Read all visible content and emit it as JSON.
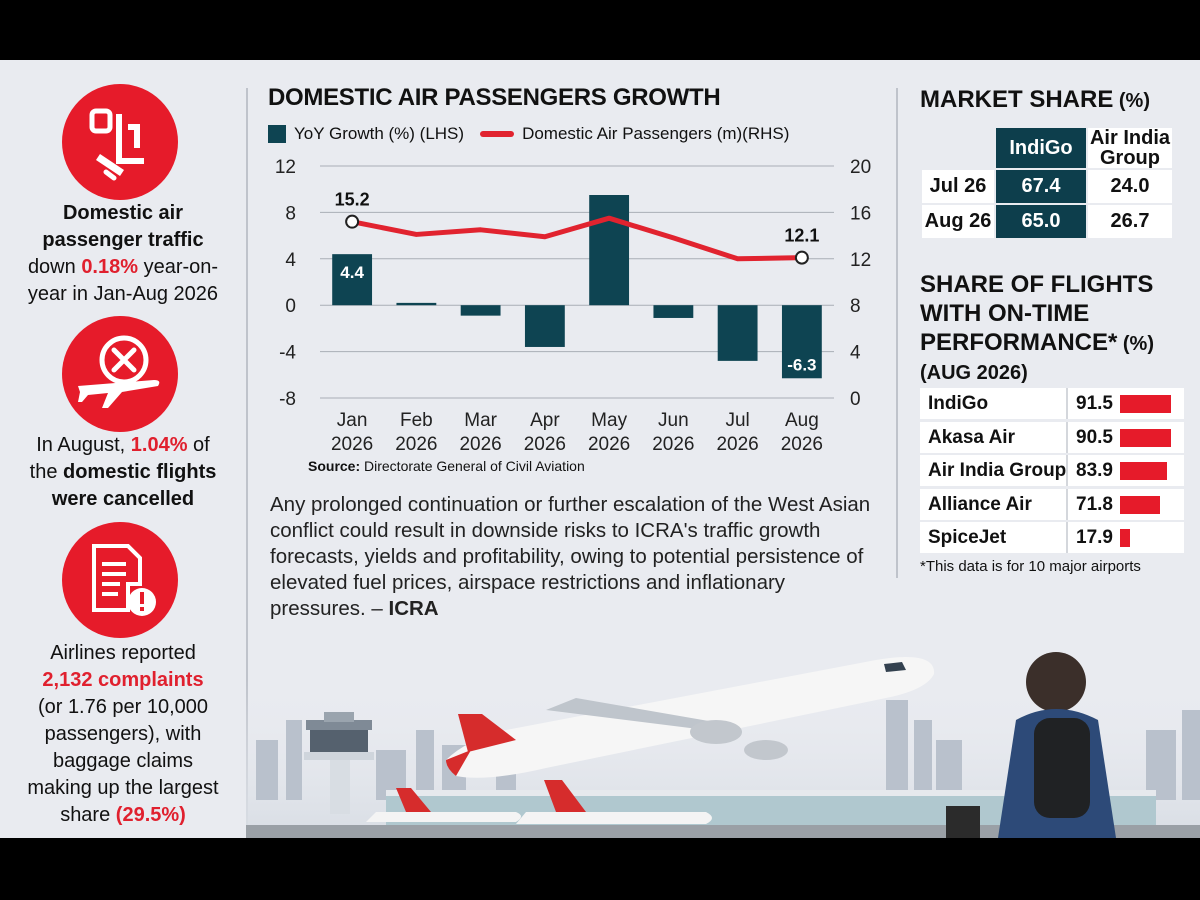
{
  "left": {
    "stat1": {
      "l1": "Domestic air",
      "l2": "passenger traffic",
      "l3a": "down ",
      "l3b": "0.18%",
      "l3c": " year-on-",
      "l4": "year in Jan-Aug 2026"
    },
    "stat2": {
      "l1a": "In August, ",
      "l1b": "1.04%",
      "l1c": " of",
      "l2a": "the ",
      "l2b": "domestic flights",
      "l3": "were cancelled"
    },
    "stat3": {
      "l1": "Airlines reported",
      "l2": "2,132 complaints",
      "l3": "(or 1.76 per 10,000",
      "l4": "passengers), with",
      "l5": "baggage claims",
      "l6": "making up the largest",
      "l7a": "share ",
      "l7b": "(29.5%)"
    }
  },
  "chart_data": {
    "type": "bar+line",
    "title": "DOMESTIC AIR PASSENGERS GROWTH",
    "categories": [
      [
        "Jan",
        "2026"
      ],
      [
        "Feb",
        "2026"
      ],
      [
        "Mar",
        "2026"
      ],
      [
        "Apr",
        "2026"
      ],
      [
        "May",
        "2026"
      ],
      [
        "Jun",
        "2026"
      ],
      [
        "Jul",
        "2026"
      ],
      [
        "Aug",
        "2026"
      ]
    ],
    "series": [
      {
        "name": "YoY Growth (%) (LHS)",
        "axis": "left",
        "values": [
          4.4,
          0.2,
          -0.9,
          -3.6,
          9.5,
          -1.1,
          -4.8,
          -6.3
        ]
      },
      {
        "name": "Domestic Air Passengers (m)(RHS)",
        "axis": "right",
        "values": [
          15.2,
          14.1,
          14.5,
          13.9,
          15.5,
          13.8,
          12.0,
          12.1
        ]
      }
    ],
    "bar_labels": {
      "0": "4.4",
      "7": "-6.3"
    },
    "line_labels": {
      "0": "15.2",
      "7": "12.1"
    },
    "ylim_left": [
      -8,
      12
    ],
    "yticks_left": [
      "12",
      "8",
      "4",
      "0",
      "-4",
      "-8"
    ],
    "ylim_right": [
      0,
      20
    ],
    "yticks_right": [
      "20",
      "16",
      "12",
      "8",
      "4",
      "0"
    ],
    "grid": true,
    "colors": {
      "bar": "#0e4452",
      "line": "#e1232f"
    }
  },
  "legend": {
    "bar": "YoY Growth (%) (LHS)",
    "line": "Domestic Air Passengers (m)(RHS)"
  },
  "source": {
    "label": "Source:",
    "text": " Directorate General of Civil Aviation"
  },
  "quote": {
    "text": "Any prolonged continuation or further escalation of the West Asian conflict could result in downside risks to ICRA's traffic growth forecasts, yields and profitability, owing to potential persistence of elevated fuel prices, airspace restrictions and inflationary pressures. – ",
    "author": "ICRA"
  },
  "market_share": {
    "title": "MARKET SHARE",
    "unit": " (%)",
    "headers": [
      "IndiGo",
      "Air India",
      "Group"
    ],
    "rows": [
      {
        "label": "Jul 26",
        "indigo": "67.4",
        "air_india": "24.0"
      },
      {
        "label": "Aug 26",
        "indigo": "65.0",
        "air_india": "26.7"
      }
    ]
  },
  "ontime": {
    "title_l1": "SHARE OF FLIGHTS",
    "title_l2": "WITH ON-TIME",
    "title_l3": "PERFORMANCE*",
    "unit": " (%)",
    "period": "(AUG 2026)",
    "rows": [
      {
        "name": "IndiGo",
        "value": "91.5",
        "pct": 91.5
      },
      {
        "name": "Akasa Air",
        "value": "90.5",
        "pct": 90.5
      },
      {
        "name": "Air India Group",
        "value": "83.9",
        "pct": 83.9
      },
      {
        "name": "Alliance Air",
        "value": "71.8",
        "pct": 71.8
      },
      {
        "name": "SpiceJet",
        "value": "17.9",
        "pct": 17.9
      }
    ],
    "note": "*This data is for 10 major airports"
  },
  "colors": {
    "accent_red": "#e61b2a",
    "indigo_teal": "#0d3e4c",
    "background": "#e9ebf0"
  }
}
